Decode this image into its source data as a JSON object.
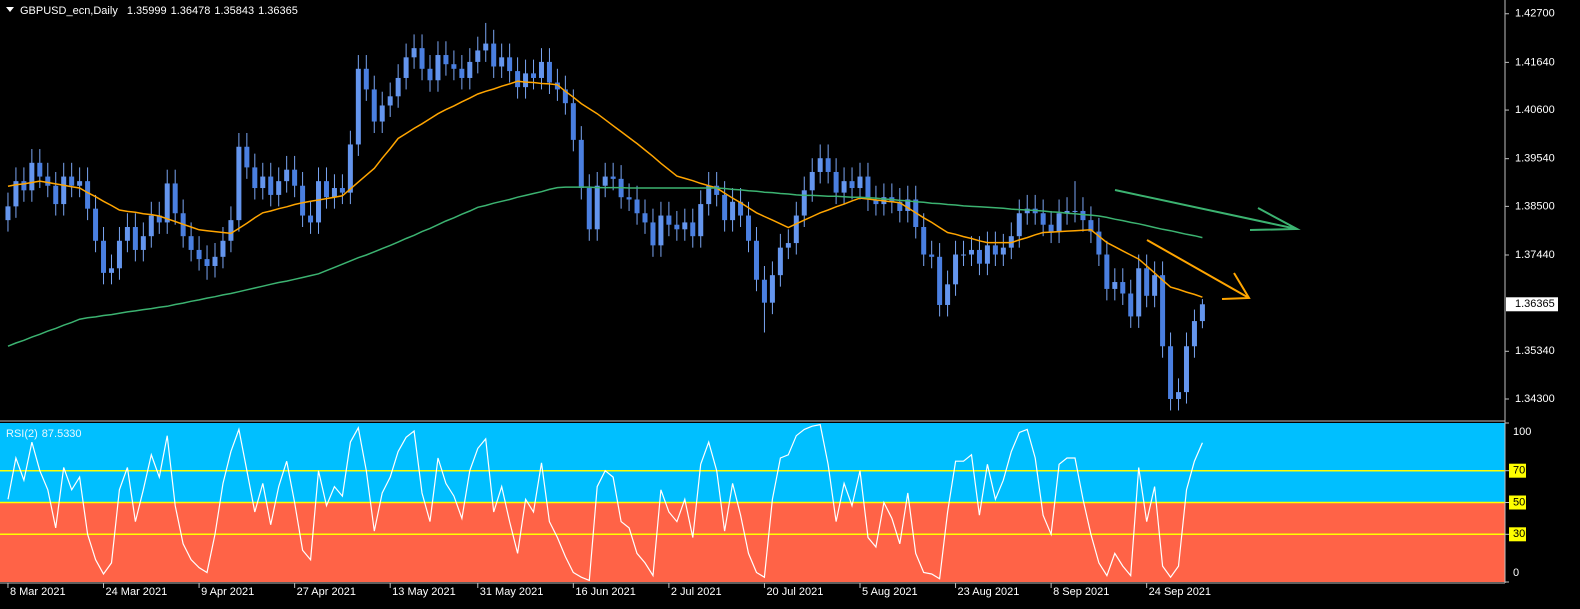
{
  "header": {
    "symbol": "GBPUSD_ecn,Daily"
  },
  "chart_data": [
    {
      "type": "candlestick",
      "bull_color": "#6495ed",
      "bear_color": "#4a7fe0",
      "wick_color": "#7aa5f2",
      "xlim": [
        -1,
        188
      ],
      "ylim": [
        1.3382,
        1.43
      ],
      "xticks": [
        {
          "value": 0,
          "label": "8 Mar 2021"
        },
        {
          "value": 12,
          "label": "24 Mar 2021"
        },
        {
          "value": 24,
          "label": "9 Apr 2021"
        },
        {
          "value": 36,
          "label": "27 Apr 2021"
        },
        {
          "value": 48,
          "label": "13 May 2021"
        },
        {
          "value": 59,
          "label": "31 May 2021"
        },
        {
          "value": 71,
          "label": "16 Jun 2021"
        },
        {
          "value": 83,
          "label": "2 Jul 2021"
        },
        {
          "value": 95,
          "label": "20 Jul 2021"
        },
        {
          "value": 107,
          "label": "5 Aug 2021"
        },
        {
          "value": 119,
          "label": "23 Aug 2021"
        },
        {
          "value": 131,
          "label": "8 Sep 2021"
        },
        {
          "value": 143,
          "label": "24 Sep 2021"
        }
      ],
      "yticks": [
        {
          "value": 1.427,
          "label": "1.42700"
        },
        {
          "value": 1.4164,
          "label": "1.41640"
        },
        {
          "value": 1.406,
          "label": "1.40600"
        },
        {
          "value": 1.3954,
          "label": "1.39540"
        },
        {
          "value": 1.385,
          "label": "1.38500"
        },
        {
          "value": 1.3744,
          "label": "1.37440"
        },
        {
          "value": 1.3534,
          "label": "1.35340"
        },
        {
          "value": 1.343,
          "label": "1.34300"
        }
      ],
      "open": [
        1.382,
        1.385,
        1.3905,
        1.3885,
        1.3945,
        1.3915,
        1.3895,
        1.3855,
        1.3915,
        1.3895,
        1.3905,
        1.3845,
        1.3775,
        1.3705,
        1.3715,
        1.3775,
        1.3805,
        1.3755,
        1.3785,
        1.383,
        1.3815,
        1.39,
        1.3835,
        1.3785,
        1.3755,
        1.3735,
        1.372,
        1.374,
        1.3775,
        1.382,
        1.398,
        1.3935,
        1.389,
        1.3915,
        1.3875,
        1.3905,
        1.393,
        1.3895,
        1.383,
        1.3815,
        1.3905,
        1.387,
        1.389,
        1.388,
        1.3985,
        1.415,
        1.4105,
        1.4035,
        1.407,
        1.409,
        1.413,
        1.4175,
        1.4195,
        1.415,
        1.4125,
        1.418,
        1.416,
        1.415,
        1.413,
        1.4165,
        1.419,
        1.4205,
        1.4155,
        1.4175,
        1.4145,
        1.411,
        1.414,
        1.413,
        1.4165,
        1.412,
        1.4105,
        1.4075,
        1.3995,
        1.389,
        1.38,
        1.3895,
        1.3915,
        1.391,
        1.387,
        1.3865,
        1.3835,
        1.3815,
        1.3765,
        1.383,
        1.381,
        1.38,
        1.3815,
        1.3785,
        1.3855,
        1.3895,
        1.3875,
        1.382,
        1.386,
        1.383,
        1.3775,
        1.369,
        1.364,
        1.37,
        1.376,
        1.377,
        1.383,
        1.3885,
        1.3925,
        1.3955,
        1.3925,
        1.388,
        1.3905,
        1.389,
        1.3915,
        1.3865,
        1.3855,
        1.387,
        1.386,
        1.384,
        1.3865,
        1.3805,
        1.3745,
        1.374,
        1.3635,
        1.368,
        1.3745,
        1.3745,
        1.3755,
        1.3725,
        1.3765,
        1.3745,
        1.376,
        1.3785,
        1.3835,
        1.3845,
        1.3835,
        1.381,
        1.3795,
        1.3835,
        1.384,
        1.384,
        1.382,
        1.3795,
        1.3745,
        1.367,
        1.3685,
        1.366,
        1.361,
        1.3715,
        1.3655,
        1.37,
        1.3545,
        1.343,
        1.3445,
        1.3545,
        1.35999
      ],
      "high": [
        1.388,
        1.3935,
        1.3935,
        1.3975,
        1.3975,
        1.3945,
        1.3925,
        1.3945,
        1.3945,
        1.3935,
        1.3935,
        1.3875,
        1.3805,
        1.3745,
        1.3805,
        1.3835,
        1.3835,
        1.3815,
        1.386,
        1.386,
        1.393,
        1.393,
        1.3865,
        1.3815,
        1.3785,
        1.3765,
        1.377,
        1.3805,
        1.385,
        1.401,
        1.401,
        1.3965,
        1.3945,
        1.3945,
        1.3935,
        1.396,
        1.396,
        1.3925,
        1.386,
        1.3935,
        1.3935,
        1.392,
        1.392,
        1.4015,
        1.418,
        1.418,
        1.4135,
        1.41,
        1.412,
        1.416,
        1.4205,
        1.4225,
        1.4225,
        1.418,
        1.421,
        1.421,
        1.419,
        1.418,
        1.4195,
        1.422,
        1.425,
        1.4235,
        1.4205,
        1.4205,
        1.4175,
        1.417,
        1.417,
        1.4195,
        1.4195,
        1.415,
        1.4135,
        1.4105,
        1.4025,
        1.392,
        1.3925,
        1.3945,
        1.3945,
        1.394,
        1.39,
        1.3895,
        1.3865,
        1.3845,
        1.386,
        1.386,
        1.384,
        1.3845,
        1.3845,
        1.3885,
        1.3925,
        1.3925,
        1.3905,
        1.389,
        1.389,
        1.386,
        1.3805,
        1.372,
        1.373,
        1.379,
        1.38,
        1.386,
        1.3915,
        1.3955,
        1.3985,
        1.3985,
        1.3955,
        1.3935,
        1.3935,
        1.3945,
        1.3945,
        1.3895,
        1.39,
        1.39,
        1.389,
        1.3895,
        1.3895,
        1.3835,
        1.3775,
        1.377,
        1.371,
        1.3775,
        1.3775,
        1.3785,
        1.3785,
        1.3795,
        1.3795,
        1.379,
        1.3815,
        1.3865,
        1.3875,
        1.3875,
        1.3865,
        1.384,
        1.3865,
        1.387,
        1.3905,
        1.387,
        1.385,
        1.3825,
        1.3775,
        1.3715,
        1.3715,
        1.369,
        1.3745,
        1.3745,
        1.373,
        1.373,
        1.3575,
        1.3475,
        1.3575,
        1.3625,
        1.36478
      ],
      "low": [
        1.3795,
        1.3825,
        1.386,
        1.386,
        1.389,
        1.387,
        1.383,
        1.383,
        1.387,
        1.387,
        1.382,
        1.375,
        1.368,
        1.368,
        1.369,
        1.375,
        1.373,
        1.373,
        1.376,
        1.379,
        1.379,
        1.381,
        1.376,
        1.373,
        1.371,
        1.369,
        1.3695,
        1.3715,
        1.375,
        1.3795,
        1.391,
        1.3865,
        1.3865,
        1.385,
        1.385,
        1.388,
        1.387,
        1.3805,
        1.379,
        1.379,
        1.3845,
        1.3845,
        1.3855,
        1.3855,
        1.396,
        1.408,
        1.401,
        1.401,
        1.4045,
        1.4065,
        1.4105,
        1.415,
        1.4125,
        1.41,
        1.41,
        1.4135,
        1.4125,
        1.4105,
        1.4105,
        1.414,
        1.4165,
        1.413,
        1.413,
        1.412,
        1.4085,
        1.4085,
        1.4105,
        1.4105,
        1.4095,
        1.408,
        1.405,
        1.397,
        1.3865,
        1.3775,
        1.3775,
        1.387,
        1.3885,
        1.3845,
        1.384,
        1.381,
        1.379,
        1.374,
        1.374,
        1.3785,
        1.3775,
        1.3775,
        1.376,
        1.376,
        1.383,
        1.385,
        1.3795,
        1.3795,
        1.3805,
        1.375,
        1.3665,
        1.3575,
        1.3615,
        1.3675,
        1.3735,
        1.3745,
        1.3805,
        1.386,
        1.39,
        1.39,
        1.3855,
        1.3855,
        1.3865,
        1.3865,
        1.384,
        1.383,
        1.383,
        1.3835,
        1.3815,
        1.3815,
        1.378,
        1.372,
        1.3715,
        1.361,
        1.361,
        1.3655,
        1.372,
        1.372,
        1.37,
        1.37,
        1.372,
        1.372,
        1.3735,
        1.376,
        1.381,
        1.381,
        1.3785,
        1.377,
        1.377,
        1.381,
        1.3815,
        1.3795,
        1.377,
        1.372,
        1.3645,
        1.3645,
        1.3635,
        1.3585,
        1.3585,
        1.363,
        1.363,
        1.352,
        1.3405,
        1.3405,
        1.342,
        1.352,
        1.35843
      ],
      "close": [
        1.385,
        1.3905,
        1.3885,
        1.3945,
        1.3915,
        1.3895,
        1.3855,
        1.3915,
        1.3895,
        1.3905,
        1.3845,
        1.3775,
        1.3705,
        1.3715,
        1.3775,
        1.3805,
        1.3755,
        1.3785,
        1.383,
        1.3815,
        1.39,
        1.3835,
        1.3785,
        1.3755,
        1.3735,
        1.372,
        1.374,
        1.3775,
        1.382,
        1.398,
        1.3935,
        1.389,
        1.3915,
        1.3875,
        1.3905,
        1.393,
        1.3895,
        1.383,
        1.3815,
        1.3905,
        1.387,
        1.389,
        1.388,
        1.3985,
        1.415,
        1.4105,
        1.4035,
        1.407,
        1.409,
        1.413,
        1.4175,
        1.4195,
        1.415,
        1.4125,
        1.418,
        1.416,
        1.415,
        1.413,
        1.4165,
        1.419,
        1.4205,
        1.4155,
        1.4175,
        1.4145,
        1.411,
        1.414,
        1.413,
        1.4165,
        1.412,
        1.4105,
        1.4075,
        1.3995,
        1.389,
        1.38,
        1.3895,
        1.3915,
        1.391,
        1.387,
        1.3865,
        1.3835,
        1.3815,
        1.3765,
        1.383,
        1.381,
        1.38,
        1.3815,
        1.3785,
        1.3855,
        1.3895,
        1.3875,
        1.382,
        1.386,
        1.383,
        1.3775,
        1.369,
        1.364,
        1.37,
        1.376,
        1.377,
        1.383,
        1.3885,
        1.3925,
        1.3955,
        1.3925,
        1.388,
        1.3905,
        1.389,
        1.3915,
        1.3865,
        1.3855,
        1.387,
        1.386,
        1.384,
        1.3865,
        1.3805,
        1.3745,
        1.374,
        1.3635,
        1.368,
        1.3745,
        1.3745,
        1.3755,
        1.3725,
        1.3765,
        1.3745,
        1.376,
        1.3785,
        1.3835,
        1.3845,
        1.3835,
        1.381,
        1.3795,
        1.3835,
        1.384,
        1.384,
        1.382,
        1.3795,
        1.3745,
        1.367,
        1.3685,
        1.366,
        1.361,
        1.3715,
        1.3655,
        1.37,
        1.3545,
        1.343,
        1.3445,
        1.3545,
        1.35999,
        1.36365
      ],
      "series": [
        {
          "color": "#ffa500",
          "values": [
            1.3894,
            1.3897,
            1.3899,
            1.3902,
            1.3905,
            1.3902,
            1.3899,
            1.3896,
            1.3893,
            1.389,
            1.388,
            1.3871,
            1.3861,
            1.3852,
            1.3842,
            1.3839,
            1.3837,
            1.3834,
            1.3832,
            1.3829,
            1.3823,
            1.3817,
            1.3811,
            1.3805,
            1.3799,
            1.3797,
            1.3795,
            1.3793,
            1.3791,
            1.3802,
            1.3813,
            1.3825,
            1.3836,
            1.384,
            1.3845,
            1.3849,
            1.3854,
            1.3858,
            1.3861,
            1.3864,
            1.3867,
            1.387,
            1.3873,
            1.3888,
            1.3903,
            1.3918,
            1.3933,
            1.3955,
            1.3976,
            1.3998,
            1.4009,
            1.402,
            1.403,
            1.4041,
            1.4052,
            1.4061,
            1.4069,
            1.4078,
            1.4086,
            1.4095,
            1.4101,
            1.4106,
            1.4112,
            1.4117,
            1.4123,
            1.4121,
            1.412,
            1.4118,
            1.4117,
            1.4115,
            1.4101,
            1.4088,
            1.4074,
            1.4063,
            1.4052,
            1.4039,
            1.4026,
            1.4013,
            1.4,
            1.3987,
            1.3973,
            1.3959,
            1.3944,
            1.393,
            1.3916,
            1.3911,
            1.3906,
            1.39,
            1.3895,
            1.389,
            1.3879,
            1.3868,
            1.3858,
            1.3847,
            1.3836,
            1.3828,
            1.382,
            1.3812,
            1.3804,
            1.3812,
            1.382,
            1.3828,
            1.3836,
            1.3842,
            1.3849,
            1.3855,
            1.3862,
            1.3868,
            1.3866,
            1.3864,
            1.3862,
            1.386,
            1.3858,
            1.3847,
            1.3836,
            1.3825,
            1.3815,
            1.3804,
            1.3793,
            1.3789,
            1.3784,
            1.378,
            1.3775,
            1.3771,
            1.3771,
            1.3771,
            1.3771,
            1.3777,
            1.3782,
            1.3788,
            1.3793,
            1.3794,
            1.3795,
            1.3796,
            1.3797,
            1.3798,
            1.3799,
            1.3785,
            1.3771,
            1.3762,
            1.3753,
            1.3744,
            1.3735,
            1.372,
            1.3705,
            1.3689,
            1.3674,
            1.3669,
            1.3663,
            1.3658,
            1.3652
          ]
        },
        {
          "color": "#3cb371",
          "values": [
            1.3545,
            1.3552,
            1.3558,
            1.3565,
            1.3571,
            1.3578,
            1.3584,
            1.3591,
            1.3597,
            1.3604,
            1.3607,
            1.3609,
            1.3612,
            1.3614,
            1.3617,
            1.362,
            1.3622,
            1.3625,
            1.3627,
            1.363,
            1.3632,
            1.3636,
            1.3639,
            1.3643,
            1.3646,
            1.365,
            1.3653,
            1.3657,
            1.366,
            1.3664,
            1.3668,
            1.3672,
            1.3676,
            1.368,
            1.3684,
            1.3687,
            1.3691,
            1.3695,
            1.3699,
            1.3703,
            1.371,
            1.3717,
            1.3724,
            1.3731,
            1.3738,
            1.3744,
            1.3751,
            1.3758,
            1.3765,
            1.3772,
            1.378,
            1.3787,
            1.3795,
            1.3802,
            1.381,
            1.3818,
            1.3825,
            1.3833,
            1.384,
            1.3848,
            1.3852,
            1.3857,
            1.3861,
            1.3865,
            1.387,
            1.3874,
            1.3878,
            1.3882,
            1.3887,
            1.3891,
            1.3892,
            1.3892,
            1.3892,
            1.3892,
            1.3891,
            1.3891,
            1.3891,
            1.3891,
            1.389,
            1.389,
            1.389,
            1.389,
            1.389,
            1.389,
            1.389,
            1.389,
            1.389,
            1.389,
            1.389,
            1.389,
            1.3889,
            1.3887,
            1.3886,
            1.3884,
            1.3883,
            1.3881,
            1.388,
            1.3878,
            1.3877,
            1.3875,
            1.3874,
            1.3874,
            1.3873,
            1.3872,
            1.3872,
            1.3871,
            1.387,
            1.387,
            1.3869,
            1.3868,
            1.3866,
            1.3865,
            1.3863,
            1.3862,
            1.386,
            1.3859,
            1.3857,
            1.3856,
            1.3854,
            1.3853,
            1.3851,
            1.385,
            1.3849,
            1.3848,
            1.3847,
            1.3846,
            1.3844,
            1.3843,
            1.3842,
            1.3841,
            1.384,
            1.3838,
            1.3837,
            1.3835,
            1.3834,
            1.3832,
            1.3831,
            1.3829,
            1.3826,
            1.3822,
            1.3819,
            1.3815,
            1.3812,
            1.3808,
            1.3804,
            1.38,
            1.3797,
            1.3793,
            1.3789,
            1.3786,
            1.3782
          ]
        }
      ]
    },
    {
      "type": "line",
      "name": "RSI(2)",
      "last_value_label": "87.5330",
      "color": "#ffffff",
      "upper_color": "#00bfff",
      "lower_color": "#ff6347",
      "level_color": "#ffff00",
      "ylim": [
        0,
        100
      ],
      "yticks": [
        0,
        30,
        50,
        70,
        100
      ],
      "levels": [
        30,
        50,
        70
      ],
      "values": [
        52,
        78,
        64,
        88,
        70,
        58,
        34,
        72,
        58,
        66,
        30,
        14,
        5,
        12,
        58,
        72,
        38,
        58,
        80,
        66,
        92,
        48,
        24,
        14,
        9,
        6,
        30,
        62,
        82,
        96,
        70,
        44,
        62,
        36,
        60,
        76,
        50,
        20,
        14,
        70,
        48,
        60,
        54,
        88,
        97,
        70,
        32,
        56,
        66,
        82,
        91,
        95,
        56,
        38,
        78,
        62,
        54,
        40,
        70,
        84,
        90,
        44,
        60,
        38,
        18,
        52,
        44,
        75,
        38,
        28,
        16,
        6,
        3,
        1,
        60,
        70,
        66,
        38,
        34,
        18,
        12,
        4,
        58,
        44,
        38,
        52,
        28,
        74,
        88,
        70,
        32,
        62,
        42,
        18,
        6,
        3,
        52,
        78,
        80,
        92,
        96,
        98,
        99,
        74,
        38,
        62,
        48,
        70,
        28,
        22,
        50,
        40,
        24,
        56,
        18,
        6,
        5,
        2,
        44,
        76,
        76,
        80,
        42,
        74,
        52,
        64,
        82,
        94,
        96,
        78,
        42,
        30,
        74,
        78,
        78,
        52,
        30,
        12,
        4,
        18,
        10,
        4,
        72,
        38,
        60,
        10,
        3,
        10,
        58,
        76,
        87.533
      ]
    }
  ]
}
